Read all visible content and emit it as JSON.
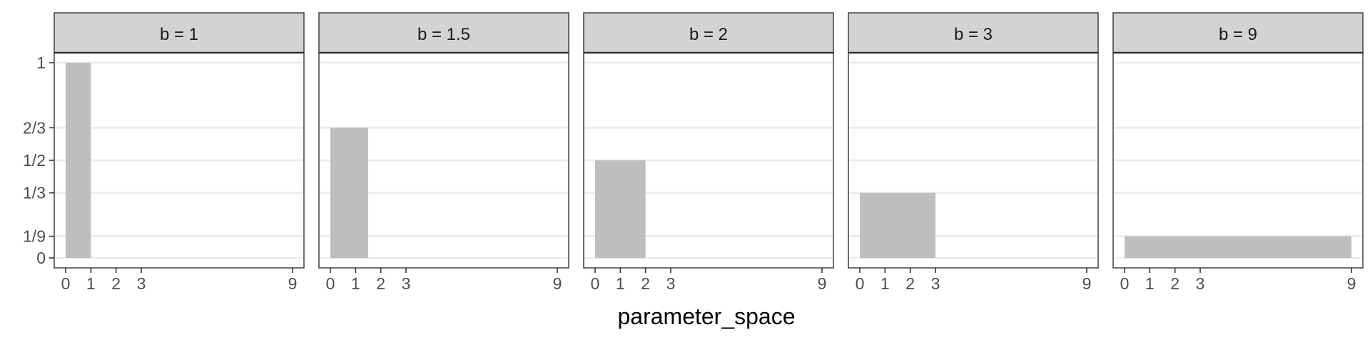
{
  "chart_data": {
    "type": "bar",
    "facet_by": "b",
    "xlabel": "parameter_space",
    "ylabel": "",
    "x_ticks": [
      0,
      1,
      2,
      3,
      9
    ],
    "x_tick_labels": [
      "0",
      "1",
      "2",
      "3",
      "9"
    ],
    "y_ticks": [
      0,
      0.111111,
      0.333333,
      0.5,
      0.666667,
      1
    ],
    "y_tick_labels": [
      "0",
      "1/9",
      "1/3",
      "1/2",
      "2/3",
      "1"
    ],
    "xlim": [
      -0.4,
      9.4
    ],
    "ylim": [
      -0.05,
      1.05
    ],
    "grid": true,
    "bar_color": "#bebebe",
    "strip_color": "#d3d3d3",
    "panels": [
      {
        "label": "b = 1",
        "b": 1,
        "x_start": 0,
        "x_end": 1,
        "height": 1
      },
      {
        "label": "b = 1.5",
        "b": 1.5,
        "x_start": 0,
        "x_end": 1.5,
        "height": 0.666667
      },
      {
        "label": "b = 2",
        "b": 2,
        "x_start": 0,
        "x_end": 2,
        "height": 0.5
      },
      {
        "label": "b = 3",
        "b": 3,
        "x_start": 0,
        "x_end": 3,
        "height": 0.333333
      },
      {
        "label": "b = 9",
        "b": 9,
        "x_start": 0,
        "x_end": 9,
        "height": 0.111111
      }
    ]
  }
}
